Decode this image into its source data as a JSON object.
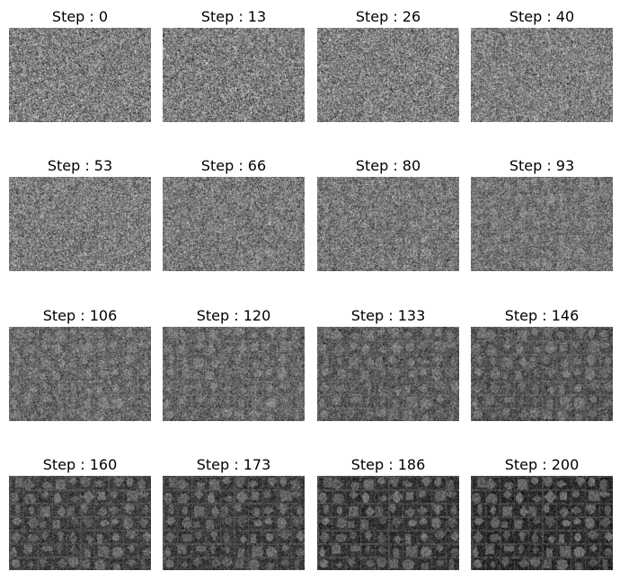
{
  "panels": [
    {
      "title": "Step : 0",
      "step": 0,
      "brightness": 0.5,
      "contrast": 0.22,
      "structure": 0.0
    },
    {
      "title": "Step : 13",
      "step": 13,
      "brightness": 0.5,
      "contrast": 0.22,
      "structure": 0.03
    },
    {
      "title": "Step : 26",
      "step": 26,
      "brightness": 0.5,
      "contrast": 0.22,
      "structure": 0.06
    },
    {
      "title": "Step : 40",
      "step": 40,
      "brightness": 0.5,
      "contrast": 0.21,
      "structure": 0.1
    },
    {
      "title": "Step : 53",
      "step": 53,
      "brightness": 0.49,
      "contrast": 0.21,
      "structure": 0.16
    },
    {
      "title": "Step : 66",
      "step": 66,
      "brightness": 0.48,
      "contrast": 0.21,
      "structure": 0.22
    },
    {
      "title": "Step : 80",
      "step": 80,
      "brightness": 0.47,
      "contrast": 0.21,
      "structure": 0.3
    },
    {
      "title": "Step : 93",
      "step": 93,
      "brightness": 0.46,
      "contrast": 0.2,
      "structure": 0.36
    },
    {
      "title": "Step : 106",
      "step": 106,
      "brightness": 0.42,
      "contrast": 0.2,
      "structure": 0.46
    },
    {
      "title": "Step : 120",
      "step": 120,
      "brightness": 0.41,
      "contrast": 0.2,
      "structure": 0.52
    },
    {
      "title": "Step : 133",
      "step": 133,
      "brightness": 0.38,
      "contrast": 0.2,
      "structure": 0.6
    },
    {
      "title": "Step : 146",
      "step": 146,
      "brightness": 0.36,
      "contrast": 0.2,
      "structure": 0.66
    },
    {
      "title": "Step : 160",
      "step": 160,
      "brightness": 0.3,
      "contrast": 0.21,
      "structure": 0.8
    },
    {
      "title": "Step : 173",
      "step": 173,
      "brightness": 0.29,
      "contrast": 0.21,
      "structure": 0.85
    },
    {
      "title": "Step : 186",
      "step": 186,
      "brightness": 0.27,
      "contrast": 0.22,
      "structure": 0.92
    },
    {
      "title": "Step : 200",
      "step": 200,
      "brightness": 0.25,
      "contrast": 0.23,
      "structure": 1.0
    }
  ],
  "colors": {
    "background": "#ffffff",
    "title_text": "#000000",
    "image_mid_gray": "#808080"
  }
}
